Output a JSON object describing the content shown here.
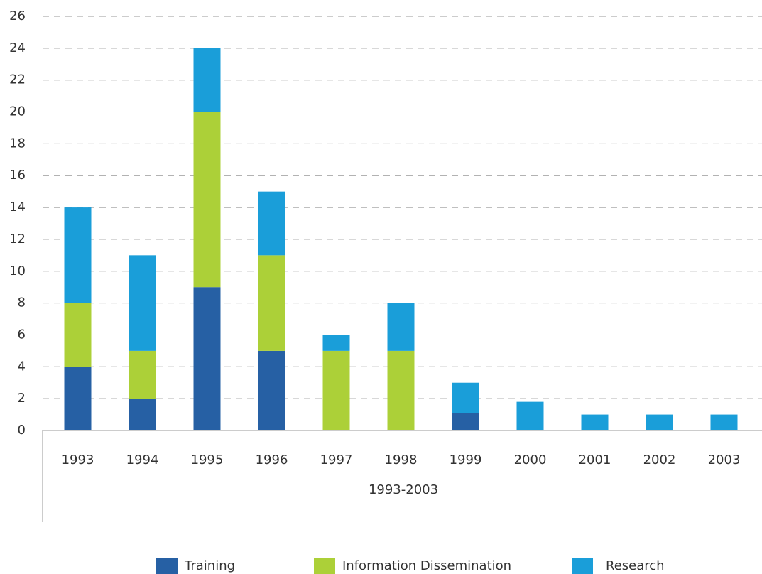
{
  "chart_data": {
    "type": "stacked_bar",
    "xlabel": "1993-2003",
    "categories": [
      "1993",
      "1994",
      "1995",
      "1996",
      "1997",
      "1998",
      "1999",
      "2000",
      "2001",
      "2002",
      "2003"
    ],
    "series": [
      {
        "name": "Training",
        "color": "#2660a4",
        "values": [
          4,
          2,
          9,
          5,
          0,
          0,
          1.1,
          0,
          0,
          0,
          0
        ]
      },
      {
        "name": "Information Dissemination",
        "color": "#acd038",
        "values": [
          4,
          3,
          11,
          6,
          5,
          5,
          0,
          0,
          0,
          0,
          0
        ]
      },
      {
        "name": "Research",
        "color": "#1a9ed9",
        "values": [
          6,
          6,
          4,
          4,
          1,
          3,
          1.9,
          1.8,
          1,
          1,
          1
        ]
      }
    ],
    "ylim": [
      0,
      26
    ],
    "yticks": [
      0,
      2,
      4,
      6,
      8,
      10,
      12,
      14,
      16,
      18,
      20,
      22,
      24,
      26
    ],
    "grid": true,
    "legend": "bottom"
  }
}
